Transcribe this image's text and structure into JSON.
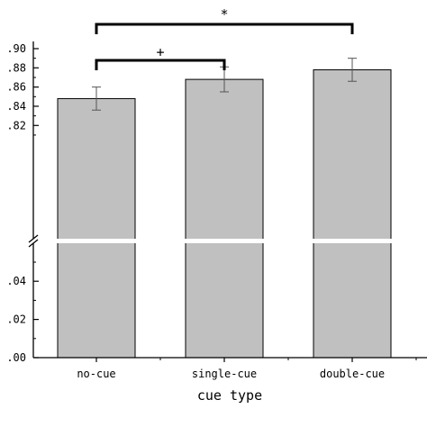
{
  "chart_data": {
    "type": "bar",
    "title": "",
    "xlabel": "cue type",
    "ylabel": "",
    "categories": [
      "no-cue",
      "single-cue",
      "double-cue"
    ],
    "values": [
      0.848,
      0.868,
      0.878
    ],
    "errors": [
      0.012,
      0.013,
      0.012
    ],
    "axis_break": {
      "lower_range": [
        0.0,
        0.05
      ],
      "upper_range": [
        0.8,
        0.9
      ]
    },
    "y_tick_labels_lower": [
      ".00",
      ".02",
      ".04"
    ],
    "y_tick_values_lower": [
      0.0,
      0.02,
      0.04
    ],
    "y_tick_labels_upper": [
      ".82",
      ".84",
      ".86",
      ".88",
      ".90"
    ],
    "y_tick_values_upper": [
      0.82,
      0.84,
      0.86,
      0.88,
      0.9
    ],
    "bar_color": "#c0c0c0",
    "grid": false,
    "significance": [
      {
        "from": 0,
        "to": 1,
        "label": "+"
      },
      {
        "from": 0,
        "to": 2,
        "label": "*"
      }
    ]
  }
}
